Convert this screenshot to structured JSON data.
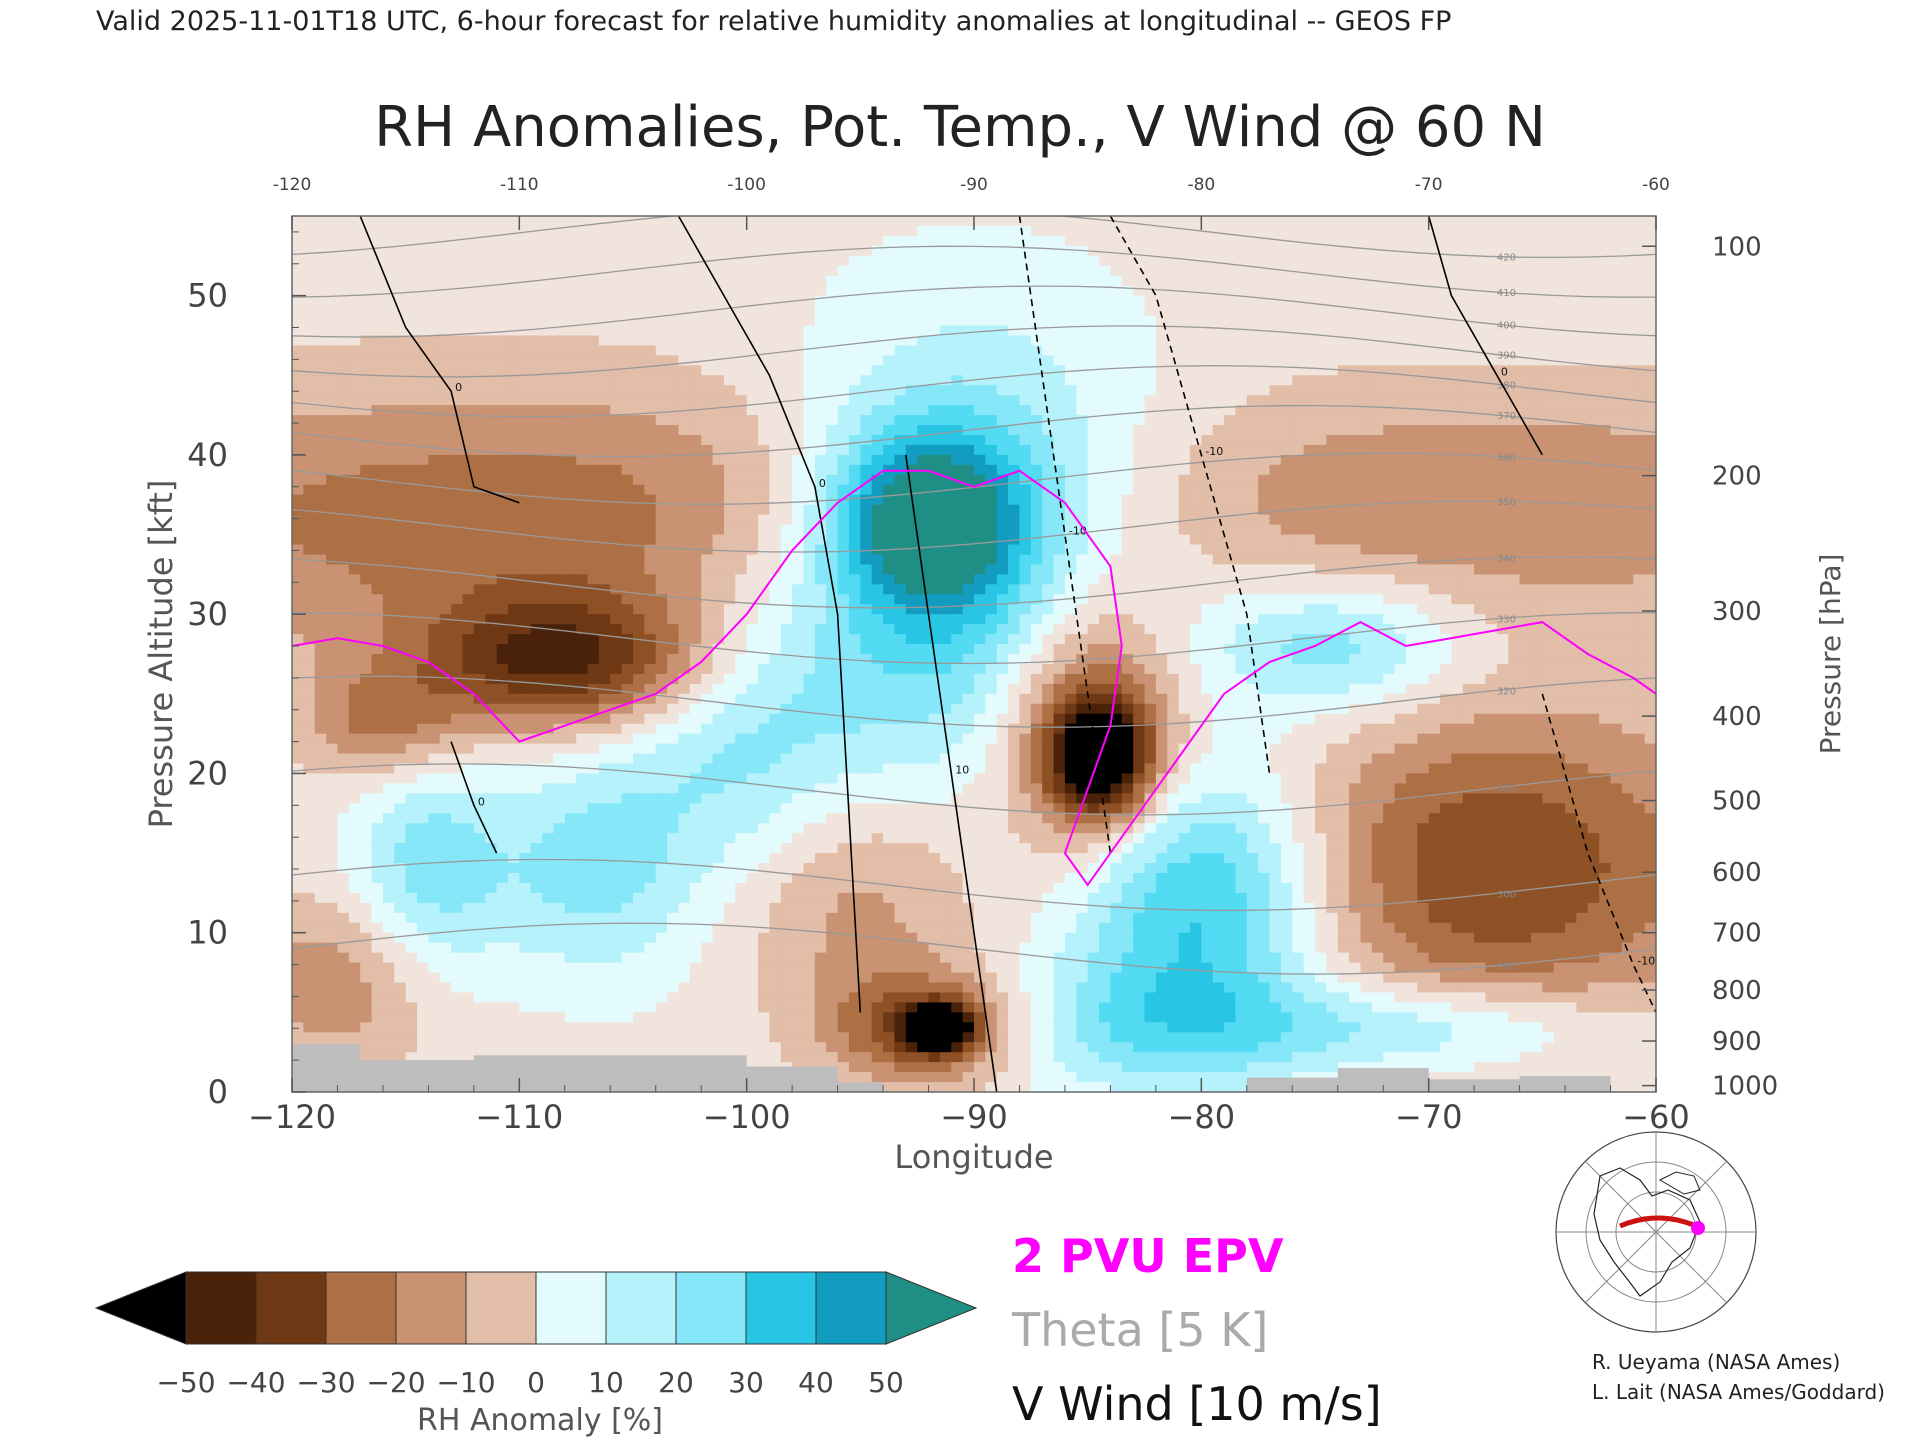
{
  "header": {
    "valid_line": "Valid 2025-11-01T18 UTC, 6-hour forecast for relative humidity anomalies at longitudinal -- GEOS FP",
    "title": "RH Anomalies, Pot. Temp., V Wind @ 60 N"
  },
  "credits": {
    "line1": "R. Ueyama (NASA Ames)",
    "line2": "L. Lait (NASA Ames/Goddard)"
  },
  "legend": {
    "epv": "2 PVU EPV",
    "theta": "Theta [5 K]",
    "vwind": "V Wind [10 m/s]"
  },
  "colors": {
    "epv": "#ff00ff",
    "theta": "#999999",
    "vwind": "#000000",
    "dry_extreme": "#000000",
    "dry": "#5c2e0f",
    "neutral": "#eeeeea",
    "moist": "#33d4f0",
    "moist_extreme": "#1f8f86",
    "terrain": "#bdbdbd"
  },
  "chart_data": {
    "type": "heatmap",
    "title": "RH Anomalies, Pot. Temp., V Wind @ 60 N",
    "xlabel": "Longitude",
    "ylabel": "Pressure Altitude [kft]",
    "ylabel_right": "Pressure [hPa]",
    "xlim": [
      -120,
      -60
    ],
    "ylim": [
      0,
      55
    ],
    "x_ticks": [
      "−120",
      "−110",
      "−100",
      "−90",
      "−80",
      "−70",
      "−60"
    ],
    "x_ticks_top": [
      "-120",
      "-110",
      "-100",
      "-90",
      "-80",
      "-70",
      "-60"
    ],
    "x_tick_values": [
      -120,
      -110,
      -100,
      -90,
      -80,
      -70,
      -60
    ],
    "y_ticks": [
      "0",
      "10",
      "20",
      "30",
      "40",
      "50"
    ],
    "y_tick_values": [
      0,
      10,
      20,
      30,
      40,
      50
    ],
    "pressure_ticks": [
      {
        "label": "100",
        "kft": 53.1
      },
      {
        "label": "200",
        "kft": 38.7
      },
      {
        "label": "300",
        "kft": 30.2
      },
      {
        "label": "400",
        "kft": 23.6
      },
      {
        "label": "500",
        "kft": 18.3
      },
      {
        "label": "600",
        "kft": 13.8
      },
      {
        "label": "700",
        "kft": 10.0
      },
      {
        "label": "800",
        "kft": 6.4
      },
      {
        "label": "900",
        "kft": 3.2
      },
      {
        "label": "1000",
        "kft": 0.4
      }
    ],
    "colorbar": {
      "label": "RH Anomaly [%]",
      "tick_labels": [
        "−50",
        "−40",
        "−30",
        "−20",
        "−10",
        "0",
        "10",
        "20",
        "30",
        "40",
        "50"
      ],
      "colors": [
        "#000000",
        "#4a220a",
        "#6e3814",
        "#8e5025",
        "#ad6f44",
        "#c99272",
        "#e2bda8",
        "#f1e4dc",
        "#e4fbfd",
        "#b5f2fb",
        "#85e7f7",
        "#52dbf3",
        "#28c5e4",
        "#129cc0",
        "#1f8f86"
      ]
    },
    "rh_anomaly": {
      "description_units": "%",
      "background": 0,
      "blobs": [
        {
          "lon": -110,
          "kft": 36,
          "sx": 16,
          "sy": 6,
          "value": -24
        },
        {
          "lon": -66,
          "kft": 37,
          "sx": 14,
          "sy": 5,
          "value": -18
        },
        {
          "lon": -108,
          "kft": 27,
          "sx": 4.5,
          "sy": 3,
          "value": -42
        },
        {
          "lon": -116,
          "kft": 23,
          "sx": 2.5,
          "sy": 2.5,
          "value": -20
        },
        {
          "lon": -85,
          "kft": 23,
          "sx": 3,
          "sy": 6,
          "value": -44
        },
        {
          "lon": -84.5,
          "kft": 21,
          "sx": 1.5,
          "sy": 2.5,
          "value": -55
        },
        {
          "lon": -97,
          "kft": 13,
          "sx": 4.5,
          "sy": 6,
          "value": -28
        },
        {
          "lon": -92,
          "kft": 4,
          "sx": 3,
          "sy": 2.5,
          "value": -36
        },
        {
          "lon": -91.5,
          "kft": 4,
          "sx": 1,
          "sy": 1,
          "value": -60
        },
        {
          "lon": -67,
          "kft": 14,
          "sx": 7,
          "sy": 7,
          "value": -34
        },
        {
          "lon": -118,
          "kft": 7,
          "sx": 3,
          "sy": 4,
          "value": -18
        },
        {
          "lon": -90,
          "kft": 33,
          "sx": 6,
          "sy": 10,
          "value": 40
        },
        {
          "lon": -92,
          "kft": 36,
          "sx": 3,
          "sy": 4,
          "value": 52
        },
        {
          "lon": -80,
          "kft": 12,
          "sx": 4,
          "sy": 6,
          "value": 40
        },
        {
          "lon": -100,
          "kft": 18,
          "sx": 4,
          "sy": 8,
          "value": 28
        },
        {
          "lon": -107,
          "kft": 14,
          "sx": 3,
          "sy": 5,
          "value": 20
        },
        {
          "lon": -114,
          "kft": 14,
          "sx": 2.5,
          "sy": 5,
          "value": 24
        },
        {
          "lon": -74,
          "kft": 28,
          "sx": 4,
          "sy": 3,
          "value": 26
        },
        {
          "lon": -70,
          "kft": 4,
          "sx": 6,
          "sy": 2,
          "value": 22
        },
        {
          "lon": -83,
          "kft": 4,
          "sx": 6,
          "sy": 3,
          "value": 18
        }
      ]
    },
    "epv_2pvu": {
      "lon": [
        -120,
        -118,
        -116,
        -114,
        -112,
        -110,
        -108,
        -106,
        -104,
        -102,
        -100,
        -98,
        -96,
        -94,
        -92,
        -90,
        -88,
        -86,
        -84,
        -83.5,
        -84,
        -86,
        -85,
        -83,
        -81,
        -79,
        -77,
        -75,
        -73,
        -71,
        -69,
        -67,
        -65,
        -63,
        -61,
        -60
      ],
      "kft": [
        28,
        28.5,
        28,
        27,
        25,
        22,
        23,
        24,
        25,
        27,
        30,
        34,
        37,
        39,
        39,
        38,
        39,
        37,
        33,
        28,
        23,
        15,
        13,
        17,
        21,
        25,
        27,
        28,
        29.5,
        28,
        28.5,
        29,
        29.5,
        27.5,
        26,
        25
      ]
    },
    "theta_levels_K": [
      290,
      300,
      310,
      320,
      330,
      340,
      350,
      360,
      370,
      380,
      390,
      400,
      410,
      420
    ],
    "theta_kft": [
      9,
      13,
      19,
      24.5,
      28.5,
      32,
      35.5,
      38.5,
      41.5,
      44,
      46.5,
      49,
      51.5,
      54
    ],
    "v_wind_contours": [
      {
        "value": 0,
        "lon": [
          -117,
          -115,
          -113,
          -112,
          -110
        ],
        "kft": [
          55,
          48,
          44,
          38,
          37
        ]
      },
      {
        "value": 0,
        "lon": [
          -103,
          -101,
          -99,
          -97,
          -96,
          -95
        ],
        "kft": [
          55,
          50,
          45,
          38,
          30,
          5
        ]
      },
      {
        "value": 10,
        "lon": [
          -93,
          -92,
          -91,
          -90,
          -89
        ],
        "kft": [
          40,
          30,
          20,
          10,
          0
        ]
      },
      {
        "value": -10,
        "lon": [
          -88,
          -87,
          -86,
          -85,
          -84
        ],
        "kft": [
          55,
          45,
          35,
          25,
          15
        ]
      },
      {
        "value": -10,
        "lon": [
          -84,
          -82,
          -80,
          -78,
          -77
        ],
        "kft": [
          55,
          50,
          40,
          30,
          20
        ]
      },
      {
        "value": 0,
        "lon": [
          -70,
          -69,
          -67,
          -65
        ],
        "kft": [
          55,
          50,
          45,
          40
        ]
      },
      {
        "value": -10,
        "lon": [
          -65,
          -63,
          -61,
          -60
        ],
        "kft": [
          25,
          15,
          8,
          5
        ]
      },
      {
        "value": 0,
        "lon": [
          -113,
          -112,
          -111
        ],
        "kft": [
          22,
          18,
          15
        ]
      }
    ],
    "terrain_kft": [
      {
        "lon0": -120,
        "lon1": -117,
        "kft": 3
      },
      {
        "lon0": -117,
        "lon1": -112,
        "kft": 2
      },
      {
        "lon0": -112,
        "lon1": -100,
        "kft": 2.3
      },
      {
        "lon0": -100,
        "lon1": -96,
        "kft": 1.6
      },
      {
        "lon0": -96,
        "lon1": -94,
        "kft": 0.6
      },
      {
        "lon0": -78,
        "lon1": -74,
        "kft": 0.9
      },
      {
        "lon0": -74,
        "lon1": -70,
        "kft": 1.5
      },
      {
        "lon0": -70,
        "lon1": -66,
        "kft": 0.8
      },
      {
        "lon0": -66,
        "lon1": -62,
        "kft": 1.0
      }
    ]
  },
  "inset_map": {
    "name": "locator-map"
  }
}
